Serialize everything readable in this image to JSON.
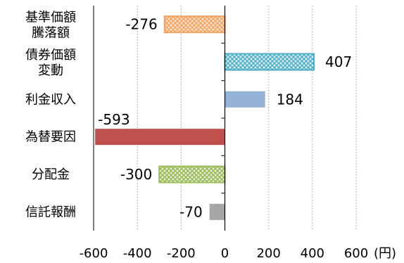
{
  "chart_data": {
    "type": "bar",
    "orientation": "horizontal",
    "categories": [
      [
        "基準価額",
        "騰落額"
      ],
      [
        "債券価額",
        "変動"
      ],
      [
        "利金収入"
      ],
      [
        "為替要因"
      ],
      [
        "分配金"
      ],
      [
        "信託報酬"
      ]
    ],
    "values": [
      -276,
      407,
      184,
      -593,
      -300,
      -70
    ],
    "value_labels": [
      "-276",
      "407",
      "184",
      "-593",
      "-300",
      "-70"
    ],
    "xlim": [
      -600,
      600
    ],
    "xticks": [
      "-600",
      "-400",
      "-200",
      "0",
      "200",
      "400",
      "600"
    ],
    "unit_label": "(円)",
    "grid": "vertical dotted",
    "legend": "none",
    "colors": [
      "#f2a15f",
      "#4bacc6",
      "#95b3d7",
      "#c0504d",
      "#9bbb59",
      "#a6a6a6"
    ],
    "patterns": [
      "crosshatch",
      "crosshatch",
      "solid",
      "solid",
      "crosshatch",
      "solid"
    ]
  }
}
